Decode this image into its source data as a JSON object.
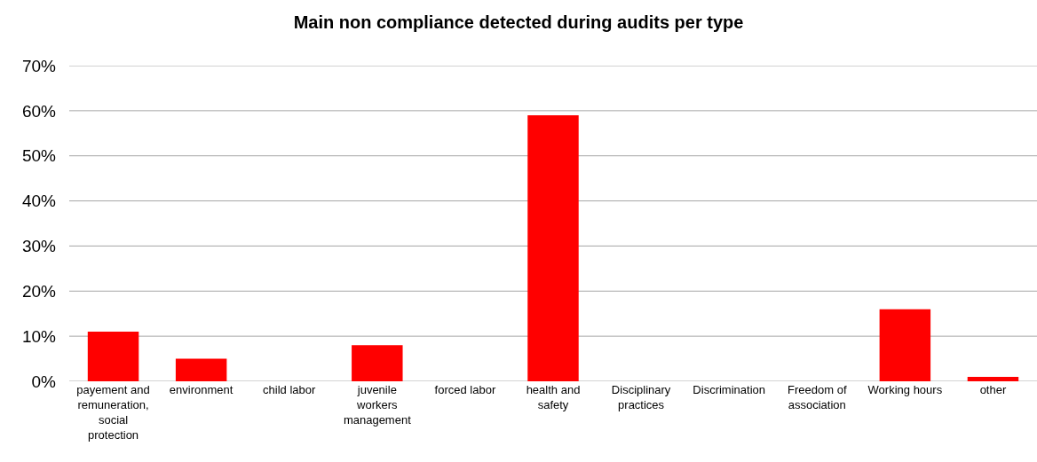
{
  "chart_data": {
    "type": "bar",
    "title": "Main non compliance detected during audits per type",
    "categories": [
      "payement and remuneration, social protection",
      "environment",
      "child labor",
      "juvenile workers management",
      "forced labor",
      "health and safety",
      "Disciplinary practices",
      "Discrimination",
      "Freedom of association",
      "Working hours",
      "other"
    ],
    "values": [
      11,
      5,
      0,
      8,
      0,
      59,
      0,
      0,
      0,
      16,
      1
    ],
    "color": "#ff0000",
    "ylim": [
      0,
      70
    ],
    "yticks": [
      {
        "value": 0,
        "label": "0%"
      },
      {
        "value": 10,
        "label": "10%"
      },
      {
        "value": 20,
        "label": "20%"
      },
      {
        "value": 30,
        "label": "30%"
      },
      {
        "value": 40,
        "label": "40%"
      },
      {
        "value": 50,
        "label": "50%"
      },
      {
        "value": 60,
        "label": "60%"
      },
      {
        "value": 70,
        "label": "70%"
      }
    ],
    "grid": "y"
  }
}
